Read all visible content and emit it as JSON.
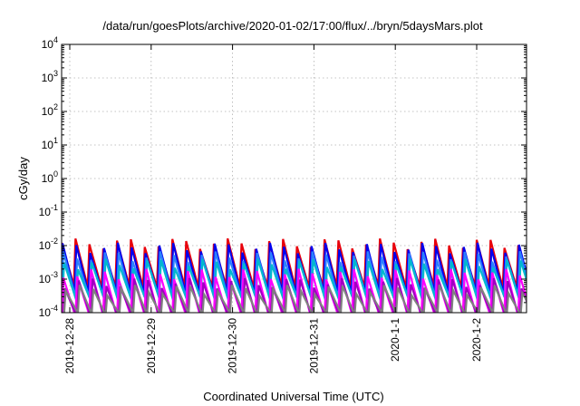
{
  "chart_data": {
    "type": "line",
    "title": "/data/run/goesPlots/archive/2020-01-02/17:00/flux/../bryn/5daysMars.plot",
    "xlabel": "Coordinated Universal Time (UTC)",
    "ylabel": "cGy/day",
    "yscale": "log",
    "ylim": [
      0.0001,
      10000
    ],
    "xlim_days": [
      0,
      6.17
    ],
    "x_ticks": [
      {
        "label": "2019-12-28",
        "day": 0
      },
      {
        "label": "2019-12-29",
        "day": 1
      },
      {
        "label": "2019-12-30",
        "day": 2
      },
      {
        "label": "2019-12-31",
        "day": 3
      },
      {
        "label": "2020-1-1",
        "day": 4
      },
      {
        "label": "2020-1-2",
        "day": 5
      }
    ],
    "y_ticks": [
      {
        "base": "10",
        "exp": "-4",
        "value": 0.0001
      },
      {
        "base": "10",
        "exp": "-3",
        "value": 0.001
      },
      {
        "base": "10",
        "exp": "-2",
        "value": 0.01
      },
      {
        "base": "10",
        "exp": "-1",
        "value": 0.1
      },
      {
        "base": "10",
        "exp": "0",
        "value": 1
      },
      {
        "base": "10",
        "exp": "1",
        "value": 10
      },
      {
        "base": "10",
        "exp": "2",
        "value": 100
      },
      {
        "base": "10",
        "exp": "3",
        "value": 1000
      },
      {
        "base": "10",
        "exp": "4",
        "value": 10000
      }
    ],
    "grid": true,
    "period_days": 0.17,
    "series": [
      {
        "color": "#e8000b",
        "peak": 0.012,
        "trough": 0.0006,
        "phase": 0.0
      },
      {
        "color": "#0000ee",
        "peak": 0.009,
        "trough": 0.0004,
        "phase": 0.01
      },
      {
        "color": "#2a7fff",
        "peak": 0.005,
        "trough": 0.0003,
        "phase": 0.02
      },
      {
        "color": "#00b8d0",
        "peak": 0.003,
        "trough": 0.00025,
        "phase": 0.03
      },
      {
        "color": "#ff00ff",
        "peak": 0.0015,
        "trough": 8e-05,
        "phase": 0.02
      },
      {
        "color": "#a000c0",
        "peak": 0.0008,
        "trough": 7e-05,
        "phase": 0.04
      },
      {
        "color": "#808080",
        "peak": 0.0005,
        "trough": 9e-05,
        "phase": 0.05
      }
    ]
  }
}
